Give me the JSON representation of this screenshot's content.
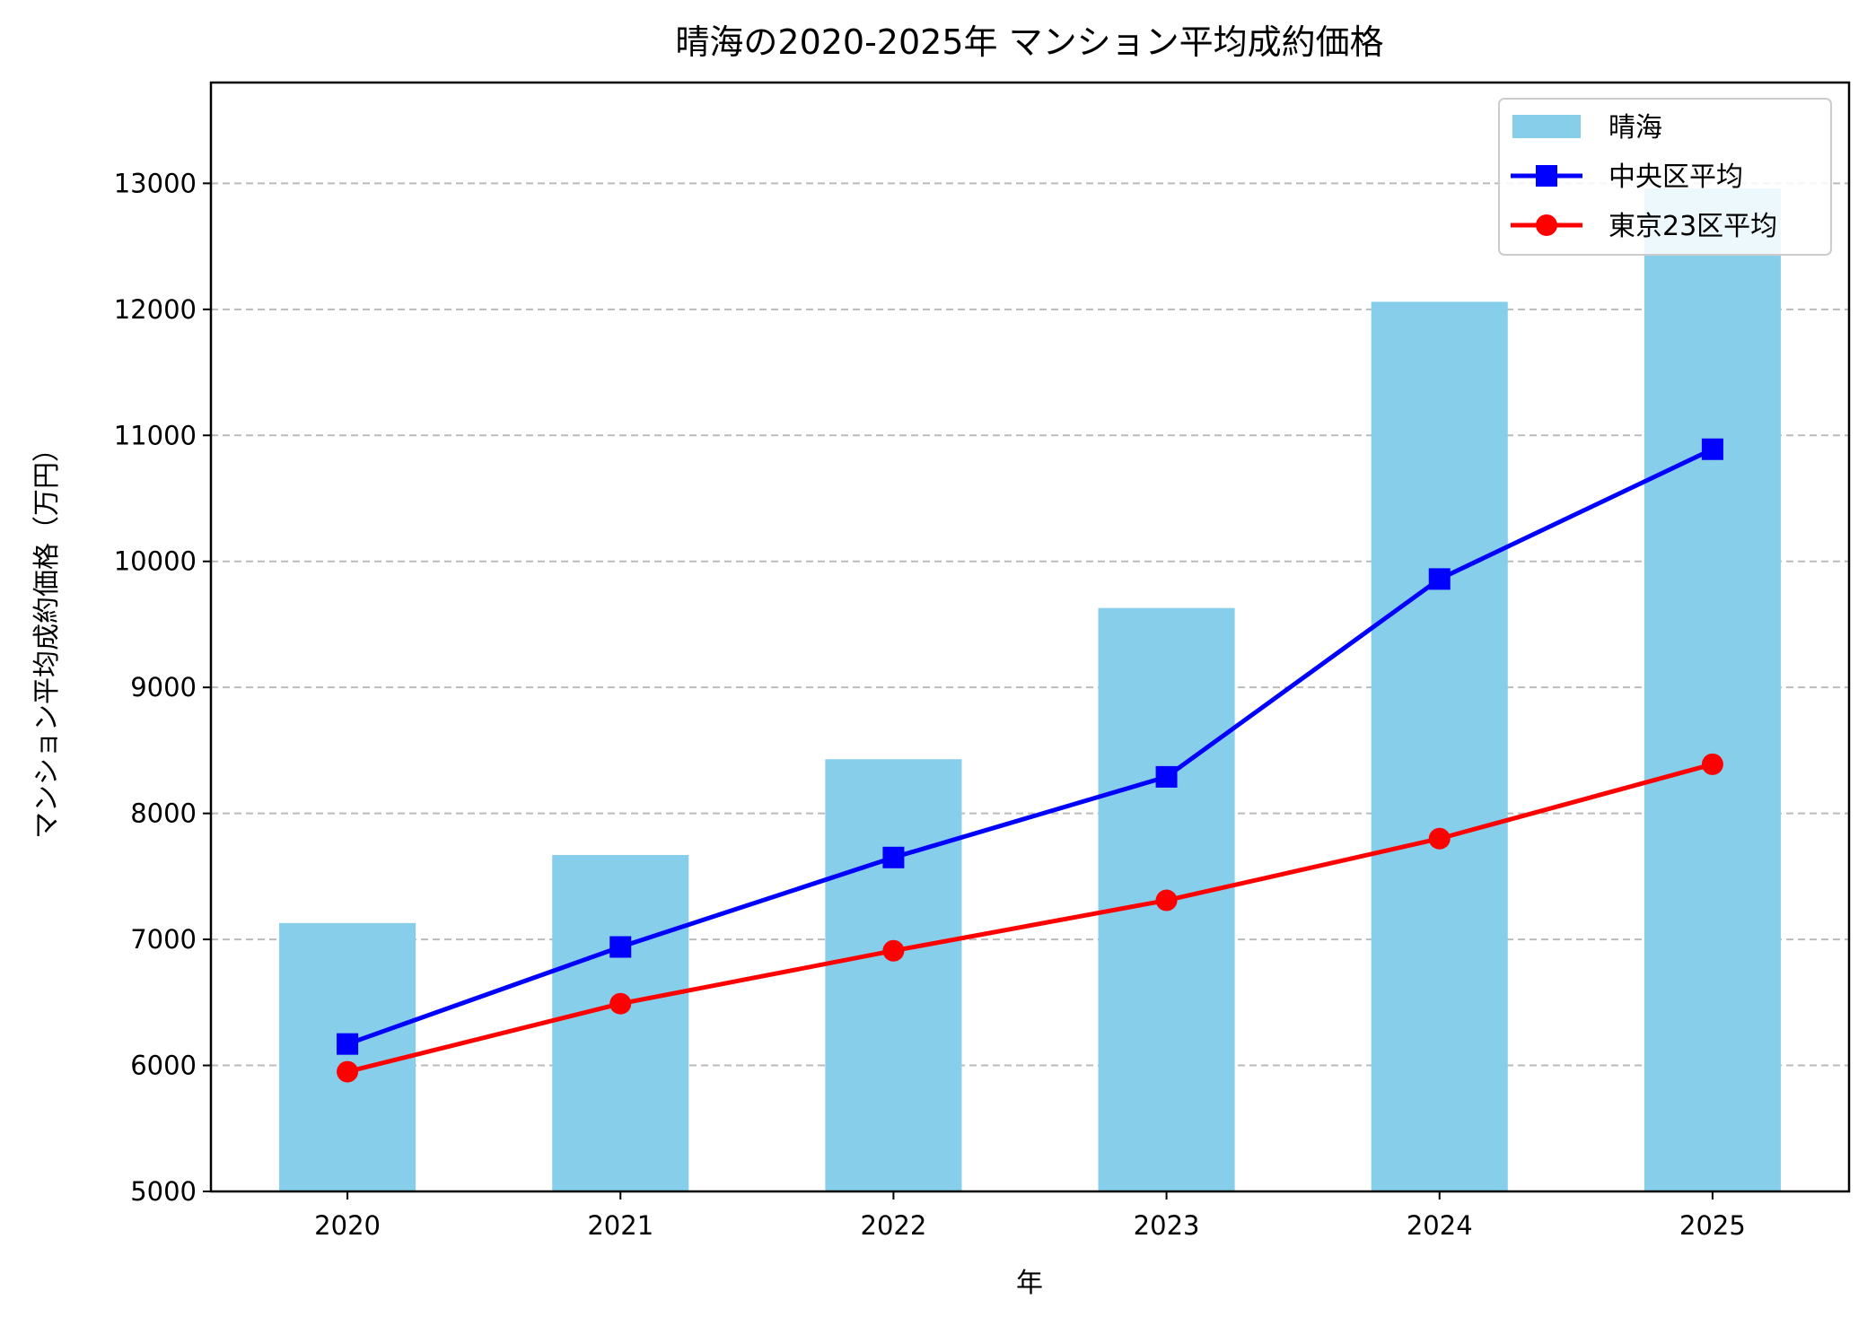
{
  "chart_data": {
    "type": "bar+line",
    "title": "晴海の2020-2025年 マンション平均成約価格",
    "xlabel": "年",
    "ylabel": "マンション平均成約価格（万円）",
    "categories": [
      "2020",
      "2021",
      "2022",
      "2023",
      "2024",
      "2025"
    ],
    "ylim": [
      5000,
      13800
    ],
    "yticks": [
      5000,
      6000,
      7000,
      8000,
      9000,
      10000,
      11000,
      12000,
      13000
    ],
    "grid": "y, dashed",
    "legend_position": "top-right",
    "series": [
      {
        "name": "晴海",
        "kind": "bar",
        "color": "#87ceeb",
        "values": [
          7130,
          7670,
          8430,
          9630,
          12060,
          12960
        ]
      },
      {
        "name": "中央区平均",
        "kind": "line",
        "marker": "square",
        "color": "#0000ff",
        "values": [
          6170,
          6940,
          7650,
          8290,
          9860,
          10890
        ]
      },
      {
        "name": "東京23区平均",
        "kind": "line",
        "marker": "circle",
        "color": "#ff0000",
        "values": [
          5950,
          6490,
          6910,
          7310,
          7800,
          8390
        ]
      }
    ]
  }
}
